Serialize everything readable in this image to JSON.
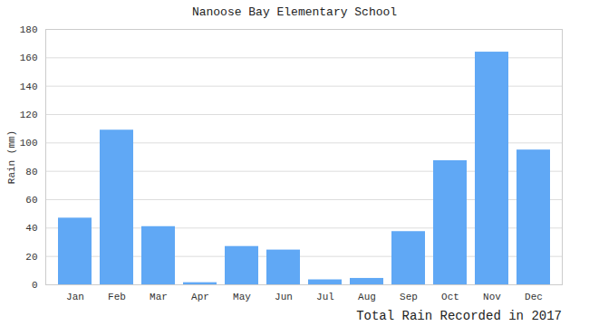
{
  "chart_data": {
    "type": "bar",
    "title": "Nanoose Bay Elementary School",
    "caption": "Total Rain Recorded in 2017",
    "y_label": "Rain (mm)",
    "categories": [
      "Jan",
      "Feb",
      "Mar",
      "Apr",
      "May",
      "Jun",
      "Jul",
      "Aug",
      "Sep",
      "Oct",
      "Nov",
      "Dec"
    ],
    "values": [
      47,
      109,
      41,
      1.5,
      27,
      24.5,
      3.5,
      4.5,
      37.5,
      87.5,
      164,
      95
    ],
    "color": "#60a8f5",
    "ylim": [
      0,
      180
    ],
    "yticks": [
      0,
      20,
      40,
      60,
      80,
      100,
      120,
      140,
      160,
      180
    ],
    "grid": true
  }
}
